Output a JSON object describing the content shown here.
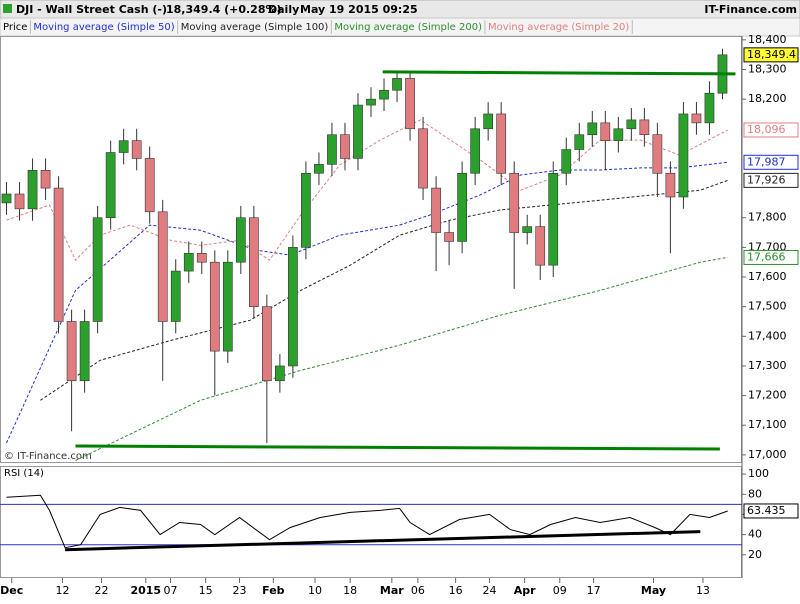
{
  "header": {
    "symbol": "DJI - Wall Street Cash (-)",
    "quote": "18,349.4 (+0.28%)",
    "period": "Daily",
    "datetime": "May 19 2015 09:25",
    "brand": "IT-Finance.com",
    "watermark": "© IT-Finance.com"
  },
  "chart_data": [
    {
      "type": "candlestick",
      "legend_first": "Price",
      "up_color": "#2ca02c",
      "down_color": "#e07c80",
      "x": [
        0,
        1,
        2,
        3,
        4,
        5,
        6,
        7,
        8,
        9,
        10,
        11,
        12,
        13,
        14,
        15,
        16,
        17,
        18,
        19,
        20,
        21,
        22,
        23,
        24,
        25,
        26,
        27,
        28,
        29,
        30,
        31,
        32,
        33,
        34,
        35,
        36,
        37,
        38,
        39,
        40,
        41,
        42,
        43,
        44,
        45,
        46,
        47,
        48,
        49,
        50,
        51,
        52,
        53,
        54,
        55
      ],
      "open": [
        17850,
        17880,
        17830,
        17960,
        17900,
        17450,
        17250,
        17450,
        17800,
        18020,
        18060,
        18000,
        17820,
        17450,
        17620,
        17680,
        17650,
        17350,
        17650,
        17800,
        17500,
        17250,
        17300,
        17700,
        17950,
        17980,
        18080,
        18000,
        18180,
        18200,
        18230,
        18270,
        18100,
        17900,
        17750,
        17720,
        17950,
        18100,
        18150,
        17950,
        17750,
        17770,
        17640,
        17950,
        18030,
        18080,
        18120,
        18060,
        18100,
        18130,
        18080,
        17950,
        17870,
        18150,
        18120,
        18220
      ],
      "high": [
        17920,
        17920,
        18000,
        18000,
        17940,
        17490,
        17490,
        17840,
        18060,
        18100,
        18100,
        18040,
        17860,
        17660,
        17720,
        17720,
        17690,
        17690,
        17840,
        17840,
        17540,
        17340,
        17740,
        17990,
        18020,
        18120,
        18120,
        18220,
        18240,
        18270,
        18295,
        18290,
        18140,
        17940,
        17790,
        17990,
        18140,
        18190,
        18190,
        17990,
        17810,
        17810,
        17990,
        18070,
        18120,
        18160,
        18160,
        18140,
        18170,
        18170,
        18120,
        17990,
        18190,
        18190,
        18260,
        18370
      ],
      "low": [
        17810,
        17790,
        17790,
        17860,
        17410,
        17080,
        17210,
        17410,
        17760,
        17980,
        17960,
        17780,
        17250,
        17410,
        17580,
        17610,
        17200,
        17310,
        17610,
        17460,
        17040,
        17210,
        17260,
        17660,
        17910,
        17940,
        17960,
        17960,
        18140,
        18160,
        18190,
        18060,
        17860,
        17620,
        17640,
        17680,
        17910,
        18060,
        17910,
        17560,
        17710,
        17590,
        17600,
        17910,
        17990,
        18040,
        17960,
        18020,
        18060,
        18040,
        17870,
        17680,
        17830,
        18080,
        18080,
        18200
      ],
      "close": [
        17880,
        17830,
        17960,
        17900,
        17450,
        17250,
        17450,
        17800,
        18020,
        18060,
        18000,
        17820,
        17450,
        17620,
        17680,
        17650,
        17350,
        17650,
        17800,
        17500,
        17250,
        17300,
        17700,
        17950,
        17980,
        18080,
        18000,
        18180,
        18200,
        18230,
        18270,
        18100,
        17900,
        17750,
        17720,
        17950,
        18100,
        18150,
        17950,
        17750,
        17770,
        17640,
        17950,
        18030,
        18080,
        18120,
        18060,
        18100,
        18130,
        18080,
        17950,
        17870,
        18150,
        18120,
        18220,
        18349.4
      ],
      "close_label": {
        "value": 18349.4,
        "label": "18,349.4"
      },
      "xlim": [
        -0.5,
        56.5
      ],
      "ylim": [
        16976,
        18413
      ],
      "yticks": [
        {
          "value": 17000,
          "label": "17,000"
        },
        {
          "value": 17100,
          "label": "17,100"
        },
        {
          "value": 17200,
          "label": "17,200"
        },
        {
          "value": 17300,
          "label": "17,300"
        },
        {
          "value": 17400,
          "label": "17,400"
        },
        {
          "value": 17500,
          "label": "17,500"
        },
        {
          "value": 17600,
          "label": "17,600"
        },
        {
          "value": 17700,
          "label": "17,700"
        },
        {
          "value": 17800,
          "label": "17,800"
        },
        {
          "value": 18200,
          "label": "18,200"
        },
        {
          "value": 18300,
          "label": "18,300"
        },
        {
          "value": 18400,
          "label": "18,400"
        }
      ],
      "xticks": [
        {
          "value": 0.4,
          "label": "Dec"
        },
        {
          "value": 4.3,
          "label": "12"
        },
        {
          "value": 7.3,
          "label": "22"
        },
        {
          "value": 10.7,
          "label": "2015"
        },
        {
          "value": 12.6,
          "label": "07"
        },
        {
          "value": 15.3,
          "label": "15"
        },
        {
          "value": 17.9,
          "label": "23"
        },
        {
          "value": 20.5,
          "label": "Feb"
        },
        {
          "value": 23.7,
          "label": "10"
        },
        {
          "value": 26.4,
          "label": "18"
        },
        {
          "value": 29.6,
          "label": "Mar"
        },
        {
          "value": 31.6,
          "label": "06"
        },
        {
          "value": 34.5,
          "label": "16"
        },
        {
          "value": 37.1,
          "label": "24"
        },
        {
          "value": 39.8,
          "label": "Apr"
        },
        {
          "value": 42.5,
          "label": "09"
        },
        {
          "value": 45.1,
          "label": "17"
        },
        {
          "value": 49.7,
          "label": "May"
        },
        {
          "value": 53.5,
          "label": "13"
        }
      ],
      "series": [
        {
          "name": "Moving average (Simple 50)",
          "color": "#1f2fd0",
          "x": [
            0,
            5.3,
            11,
            14.9,
            19.1,
            21.8,
            25.6,
            30.2,
            32.5,
            36.4,
            39.5,
            42.5,
            45.6,
            48.7,
            51.7,
            55.4
          ],
          "values": [
            17040,
            17555,
            17775,
            17758,
            17691,
            17674,
            17741,
            17775,
            17809,
            17877,
            17944,
            17961,
            17961,
            17968,
            17968,
            17987
          ],
          "last_value": {
            "value": 17987,
            "label": "17,987"
          }
        },
        {
          "name": "Moving average (Simple 100)",
          "color": "#222222",
          "x": [
            2.6,
            7.2,
            12.6,
            18.7,
            22.6,
            26.4,
            30.2,
            34.1,
            37.9,
            41.8,
            45.6,
            49.4,
            53.3,
            55.4
          ],
          "values": [
            17184,
            17319,
            17386,
            17454,
            17555,
            17640,
            17741,
            17792,
            17826,
            17843,
            17859,
            17876,
            17893,
            17926
          ],
          "last_value": {
            "value": 17926,
            "label": "17,926"
          }
        },
        {
          "name": "Moving average (Simple 200)",
          "color": "#2e8b2e",
          "x": [
            5.3,
            14.9,
            22.6,
            30.2,
            37.9,
            45.6,
            53.3,
            55.4
          ],
          "values": [
            16981,
            17184,
            17285,
            17370,
            17471,
            17555,
            17650,
            17666
          ],
          "last_value": {
            "value": 17666,
            "label": "17,666"
          }
        },
        {
          "name": "Moving average (Simple 20)",
          "color": "#e08080",
          "x": [
            0,
            3.3,
            5.3,
            7.2,
            9.5,
            12.6,
            14.9,
            17.9,
            20.2,
            22.6,
            25.6,
            28.7,
            31.8,
            34.1,
            36.4,
            39.5,
            42.5,
            45.6,
            48.7,
            51.7,
            55.4
          ],
          "values": [
            17792,
            17843,
            17657,
            17741,
            17775,
            17724,
            17707,
            17724,
            17657,
            17809,
            17978,
            18062,
            18130,
            18062,
            17995,
            17893,
            17944,
            18062,
            18062,
            18011,
            18096
          ],
          "last_value": {
            "value": 18096,
            "label": "18,096"
          }
        }
      ],
      "trendlines": [
        {
          "color": "#008000",
          "x": [
            28.9,
            56
          ],
          "values": [
            18292,
            18285
          ]
        },
        {
          "color": "#008000",
          "x": [
            5.3,
            54.8
          ],
          "values": [
            17030,
            17020
          ]
        }
      ]
    },
    {
      "type": "line",
      "title": "RSI (14)",
      "color": "#000000",
      "x": [
        0,
        2.6,
        3.3,
        4.5,
        5.7,
        7.2,
        8.7,
        10.3,
        11.8,
        13.3,
        14.9,
        16,
        17.9,
        20.2,
        21.8,
        24.1,
        26.4,
        28.7,
        30.2,
        31,
        32.5,
        34.8,
        37.1,
        38.7,
        40.2,
        41.8,
        43.7,
        45.6,
        47.9,
        49.8,
        51,
        52.5,
        54,
        55.4
      ],
      "values": [
        77,
        79,
        64,
        27,
        30,
        60,
        67,
        64,
        40,
        52,
        50,
        40,
        57,
        35,
        47,
        57,
        62,
        64,
        66,
        52,
        40,
        55,
        60,
        45,
        40,
        50,
        57,
        52,
        57,
        47,
        40,
        60,
        57,
        63.435
      ],
      "last_value": {
        "value": 63.435,
        "label": "63.435"
      },
      "levels": [
        30,
        70
      ],
      "level_color": "#3030c0",
      "xlim": [
        -0.5,
        56.5
      ],
      "ylim": [
        -3,
        108
      ],
      "yticks": [
        20,
        40,
        60,
        80,
        100
      ],
      "trendlines": [
        {
          "color": "#000000",
          "x": [
            4.5,
            53.3
          ],
          "values": [
            25,
            43
          ]
        }
      ]
    }
  ]
}
